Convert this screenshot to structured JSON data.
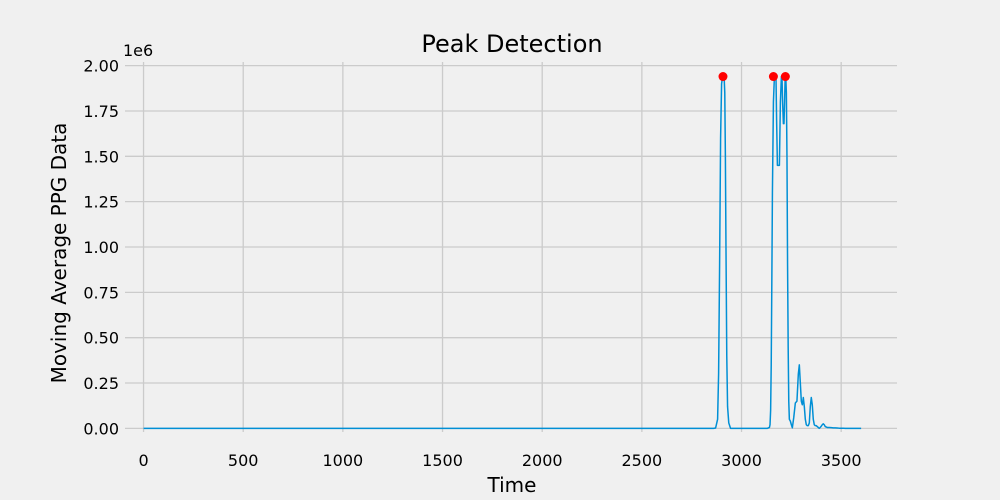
{
  "chart_data": {
    "type": "line",
    "title": "Peak Detection",
    "xlabel": "Time",
    "ylabel": "Moving Average PPG Data",
    "offset_text": "1e6",
    "xlim": [
      -93,
      3780
    ],
    "ylim": [
      -0.02,
      2.02
    ],
    "x_ticks": [
      0,
      500,
      1000,
      1500,
      2000,
      2500,
      3000,
      3500
    ],
    "y_ticks": [
      0.0,
      0.25,
      0.5,
      0.75,
      1.0,
      1.25,
      1.5,
      1.75,
      2.0
    ],
    "x_tick_labels": [
      "0",
      "500",
      "1000",
      "1500",
      "2000",
      "2500",
      "3000",
      "3500"
    ],
    "y_tick_labels": [
      "0.00",
      "0.25",
      "0.50",
      "0.75",
      "1.00",
      "1.25",
      "1.50",
      "1.75",
      "2.00"
    ],
    "grid": true,
    "colors": {
      "line": "#008fd5",
      "peak": "#ff0000",
      "background": "#f0f0f0",
      "grid": "#cbcbcb"
    },
    "series": [
      {
        "x": [
          0,
          500,
          1000,
          1500,
          2000,
          2500,
          2860,
          2870,
          2880,
          2885,
          2890,
          2895,
          2900,
          2905,
          2910,
          2913,
          2916,
          2919,
          2922,
          2926,
          2930,
          2936,
          2945,
          3000,
          3100,
          3130,
          3140,
          3143,
          3146,
          3149,
          3152,
          3155,
          3160,
          3165,
          3170,
          3173,
          3176,
          3180,
          3185,
          3190,
          3195,
          3200,
          3203,
          3206,
          3210,
          3213,
          3216,
          3219,
          3222,
          3225,
          3228,
          3231,
          3234,
          3237,
          3240,
          3245,
          3250,
          3255,
          3262,
          3270,
          3278,
          3285,
          3290,
          3295,
          3300,
          3305,
          3310,
          3315,
          3320,
          3325,
          3330,
          3335,
          3340,
          3345,
          3350,
          3355,
          3360,
          3365,
          3370,
          3375,
          3380,
          3385,
          3390,
          3395,
          3400,
          3405,
          3410,
          3415,
          3420,
          3430,
          3440,
          3450,
          3460,
          3470,
          3480,
          3490,
          3500,
          3510,
          3520,
          3540,
          3560,
          3580,
          3600
        ],
        "y": [
          0,
          0,
          0,
          0,
          0,
          0,
          0.0,
          0.002,
          0.05,
          0.3,
          0.9,
          1.6,
          1.9,
          1.94,
          1.94,
          1.93,
          1.85,
          1.5,
          1.0,
          0.4,
          0.12,
          0.03,
          0.0,
          0.0,
          0.0,
          0.0,
          0.005,
          0.02,
          0.1,
          0.35,
          0.8,
          1.3,
          1.8,
          1.94,
          1.94,
          1.93,
          1.7,
          1.45,
          1.45,
          1.45,
          1.8,
          1.94,
          1.94,
          1.8,
          1.68,
          1.68,
          1.8,
          1.94,
          1.94,
          1.85,
          1.5,
          0.9,
          0.45,
          0.15,
          0.05,
          0.04,
          0.02,
          0.003,
          0.06,
          0.14,
          0.15,
          0.3,
          0.35,
          0.25,
          0.15,
          0.13,
          0.17,
          0.12,
          0.05,
          0.02,
          0.015,
          0.015,
          0.03,
          0.12,
          0.17,
          0.13,
          0.05,
          0.02,
          0.015,
          0.015,
          0.01,
          0.005,
          0.0,
          0.005,
          0.012,
          0.02,
          0.025,
          0.02,
          0.01,
          0.005,
          0.005,
          0.004,
          0.003,
          0.003,
          0.002,
          0.001,
          0.001,
          0.001,
          0.0,
          0.0,
          0.0,
          0.0,
          0.0
        ]
      }
    ],
    "peaks": [
      {
        "x": 2907,
        "y": 1.94
      },
      {
        "x": 3160,
        "y": 1.94
      },
      {
        "x": 3220,
        "y": 1.94
      }
    ]
  }
}
